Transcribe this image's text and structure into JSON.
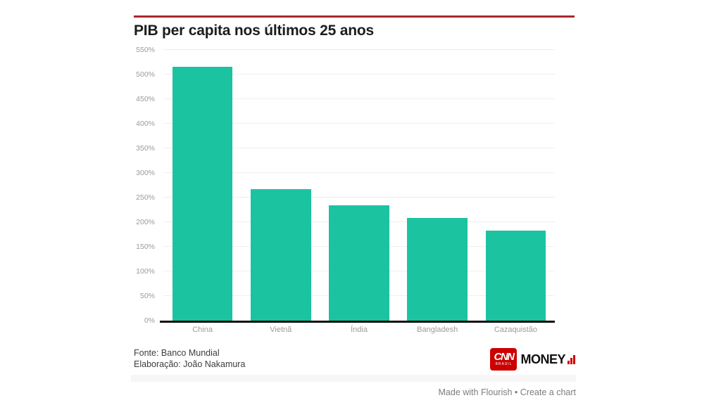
{
  "header": {
    "title": "PIB per capita nos últimos 25 anos"
  },
  "chart_data": {
    "type": "bar",
    "title": "PIB per capita nos últimos 25 anos",
    "categories": [
      "China",
      "Vietnã",
      "Índia",
      "Bangladesh",
      "Cazaquistão"
    ],
    "values": [
      516,
      267,
      234,
      208,
      183
    ],
    "xlabel": "",
    "ylabel": "",
    "ylim": [
      0,
      550
    ],
    "ytick_step": 50,
    "ytick_suffix": "%",
    "grid": true,
    "legend": false,
    "bar_color": "#1bc3a1",
    "axis_color": "#0c0c0c",
    "tick_label_color": "#9b9b9b"
  },
  "footer": {
    "source_line1": "Fonte: Banco Mundial",
    "source_line2": "Elaboração: João Nakamura",
    "logo": {
      "network": "CNN",
      "region": "BRASIL",
      "brand": "MONEY",
      "red": "#cc0000"
    }
  },
  "attribution": {
    "made_with": "Made with Flourish",
    "bullet": "•",
    "create_chart": "Create a chart"
  },
  "colors": {
    "accent_rule": "#a8282c",
    "bar": "#1bc3a1",
    "cnn_red": "#cc0000"
  }
}
